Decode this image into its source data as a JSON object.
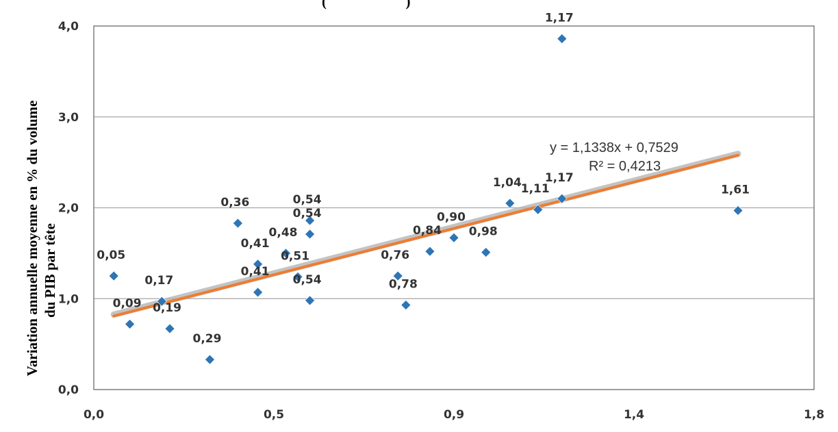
{
  "chart_data": {
    "type": "scatter",
    "title_fragment": "(                      )",
    "ylabel_line1": "Variation annuelle moyenne en %  du volume",
    "ylabel_line2": "du PIB par tête",
    "xlabel": "",
    "xlim": [
      0.0,
      1.8
    ],
    "ylim": [
      0.0,
      4.0
    ],
    "x_ticks": [
      "0,0",
      "0,5",
      "0,9",
      "1,4",
      "1,8"
    ],
    "y_ticks": [
      "0,0",
      "1,0",
      "2,0",
      "3,0",
      "4,0"
    ],
    "grid": "horizontal",
    "colors": {
      "points": "#2E75B6",
      "trend": "#ED7D31",
      "trend_shadow": "#B4B4B4",
      "grid": "#A6A6A6",
      "frame": "#7F7F7F"
    },
    "points": [
      {
        "x": 0.05,
        "y": 1.25,
        "label": "0,05"
      },
      {
        "x": 0.09,
        "y": 0.72,
        "label": "0,09"
      },
      {
        "x": 0.17,
        "y": 0.97,
        "label": "0,17"
      },
      {
        "x": 0.19,
        "y": 0.67,
        "label": "0,19"
      },
      {
        "x": 0.29,
        "y": 0.33,
        "label": "0,29"
      },
      {
        "x": 0.36,
        "y": 1.83,
        "label": "0,36"
      },
      {
        "x": 0.41,
        "y": 1.38,
        "label": "0,41"
      },
      {
        "x": 0.41,
        "y": 1.07,
        "label": "0,41"
      },
      {
        "x": 0.48,
        "y": 1.5,
        "label": "0,48"
      },
      {
        "x": 0.51,
        "y": 1.24,
        "label": "0,51"
      },
      {
        "x": 0.54,
        "y": 1.86,
        "label": "0,54"
      },
      {
        "x": 0.54,
        "y": 1.71,
        "label": "0,54"
      },
      {
        "x": 0.54,
        "y": 0.98,
        "label": "0,54"
      },
      {
        "x": 0.76,
        "y": 1.25,
        "label": "0,76"
      },
      {
        "x": 0.78,
        "y": 0.93,
        "label": "0,78"
      },
      {
        "x": 0.84,
        "y": 1.52,
        "label": "0,84"
      },
      {
        "x": 0.9,
        "y": 1.67,
        "label": "0,90"
      },
      {
        "x": 0.98,
        "y": 1.51,
        "label": "0,98"
      },
      {
        "x": 1.04,
        "y": 2.05,
        "label": "1,04"
      },
      {
        "x": 1.11,
        "y": 1.98,
        "label": "1,11"
      },
      {
        "x": 1.17,
        "y": 2.1,
        "label": "1,17"
      },
      {
        "x": 1.17,
        "y": 3.86,
        "label": "1,17"
      },
      {
        "x": 1.61,
        "y": 1.97,
        "label": "1,61"
      }
    ],
    "trendline": {
      "slope": 1.1338,
      "intercept": 0.7529,
      "x_range": [
        0.05,
        1.61
      ],
      "equation": "y = 1,1338x + 0,7529",
      "r_squared": "R² = 0,4213"
    }
  }
}
